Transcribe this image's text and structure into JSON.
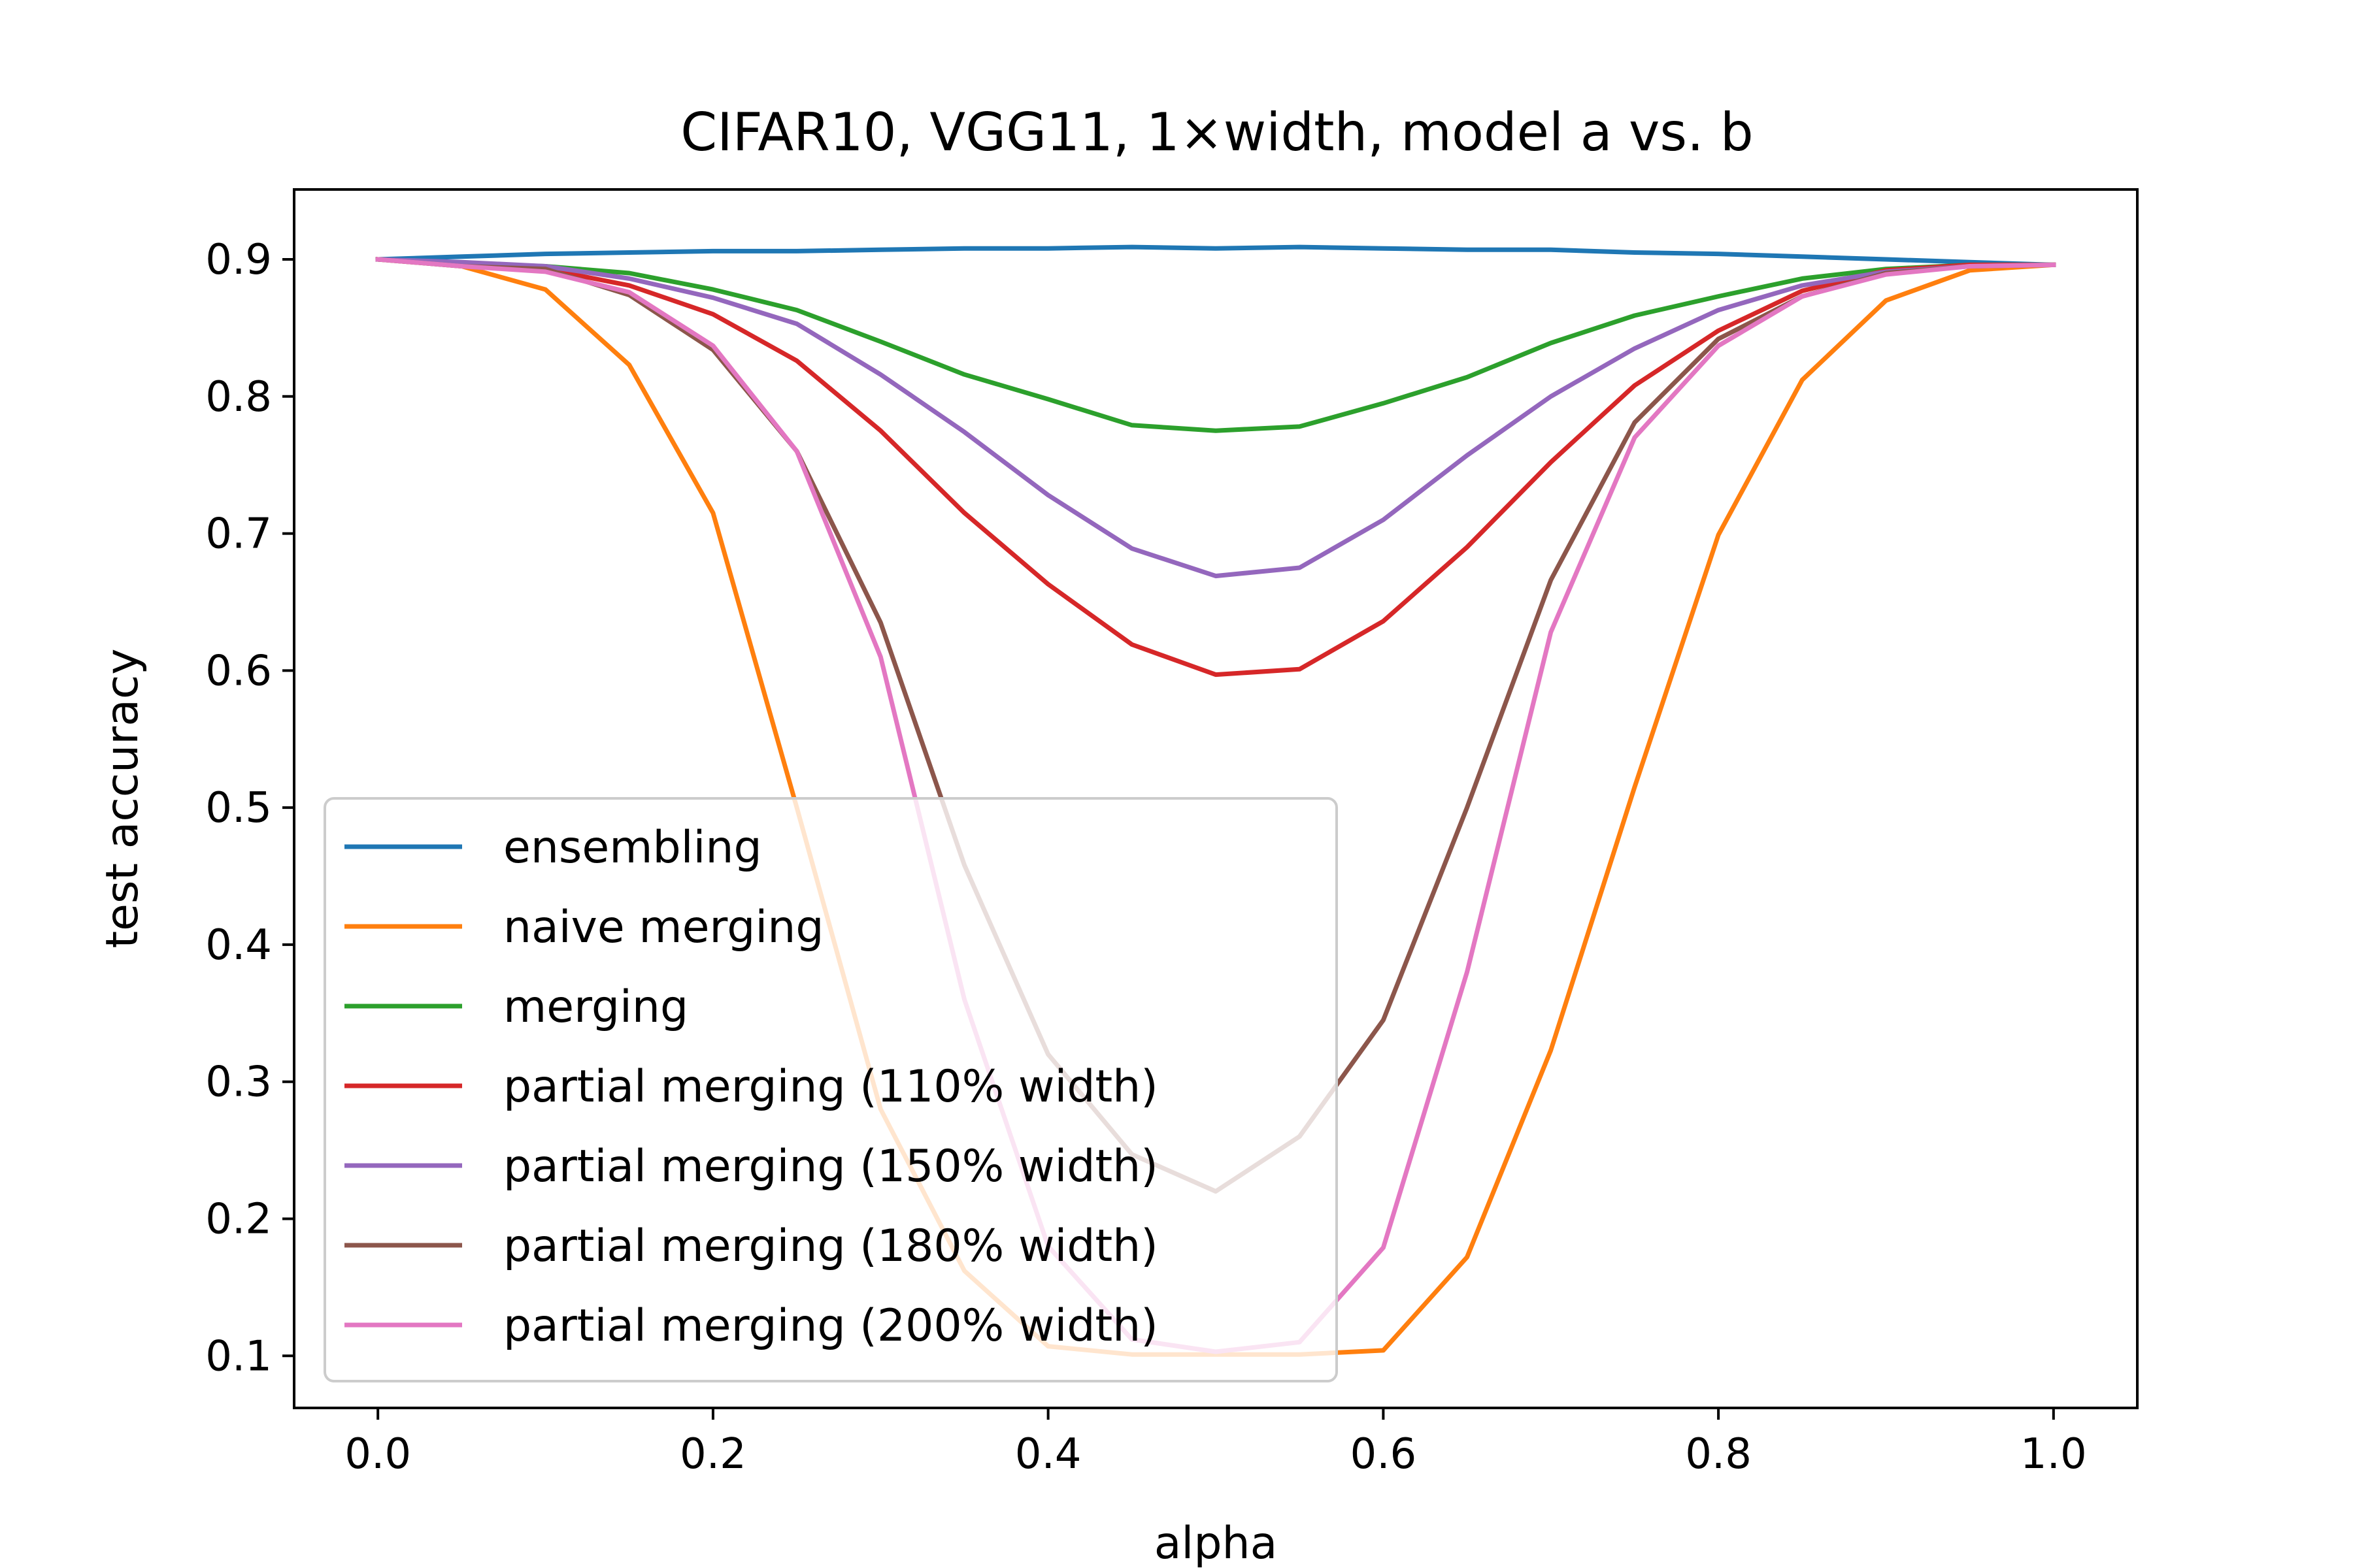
{
  "chart_data": {
    "type": "line",
    "title": "CIFAR10, VGG11, 1×width, model a vs. b",
    "xlabel": "alpha",
    "ylabel": "test accuracy",
    "xlim": [
      -0.05,
      1.05
    ],
    "ylim": [
      0.062,
      0.951
    ],
    "xticks": [
      0.0,
      0.2,
      0.4,
      0.6,
      0.8,
      1.0
    ],
    "xtick_labels": [
      "0.0",
      "0.2",
      "0.4",
      "0.6",
      "0.8",
      "1.0"
    ],
    "yticks": [
      0.1,
      0.2,
      0.3,
      0.4,
      0.5,
      0.6,
      0.7,
      0.8,
      0.9
    ],
    "ytick_labels": [
      "0.1",
      "0.2",
      "0.3",
      "0.4",
      "0.5",
      "0.6",
      "0.7",
      "0.8",
      "0.9"
    ],
    "grid": false,
    "legend_position": "lower-left",
    "x": [
      0.0,
      0.05,
      0.1,
      0.15,
      0.2,
      0.25,
      0.3,
      0.35,
      0.4,
      0.45,
      0.5,
      0.55,
      0.6,
      0.65,
      0.7,
      0.75,
      0.8,
      0.85,
      0.9,
      0.95,
      1.0
    ],
    "series": [
      {
        "name": "ensembling",
        "color": "#1f77b4",
        "values": [
          0.9,
          0.902,
          0.904,
          0.905,
          0.906,
          0.906,
          0.907,
          0.908,
          0.908,
          0.909,
          0.908,
          0.909,
          0.908,
          0.907,
          0.907,
          0.905,
          0.904,
          0.902,
          0.9,
          0.898,
          0.896
        ]
      },
      {
        "name": "naive merging",
        "color": "#ff7f0e",
        "values": [
          0.9,
          0.895,
          0.878,
          0.823,
          0.715,
          0.5,
          0.28,
          0.162,
          0.107,
          0.101,
          0.101,
          0.101,
          0.104,
          0.172,
          0.323,
          0.515,
          0.699,
          0.812,
          0.87,
          0.892,
          0.896
        ]
      },
      {
        "name": "merging",
        "color": "#2ca02c",
        "values": [
          0.9,
          0.897,
          0.895,
          0.89,
          0.878,
          0.863,
          0.84,
          0.816,
          0.798,
          0.779,
          0.775,
          0.778,
          0.795,
          0.814,
          0.839,
          0.859,
          0.873,
          0.886,
          0.893,
          0.896,
          0.896
        ]
      },
      {
        "name": "partial merging (110% width)",
        "color": "#d62728",
        "values": [
          0.9,
          0.897,
          0.893,
          0.881,
          0.86,
          0.826,
          0.775,
          0.715,
          0.663,
          0.619,
          0.597,
          0.601,
          0.636,
          0.69,
          0.752,
          0.808,
          0.848,
          0.877,
          0.892,
          0.896,
          0.896
        ]
      },
      {
        "name": "partial merging (150% width)",
        "color": "#9467bd",
        "values": [
          0.9,
          0.898,
          0.895,
          0.886,
          0.872,
          0.853,
          0.816,
          0.774,
          0.728,
          0.689,
          0.669,
          0.675,
          0.71,
          0.757,
          0.8,
          0.835,
          0.863,
          0.881,
          0.891,
          0.895,
          0.896
        ]
      },
      {
        "name": "partial merging (180% width)",
        "color": "#8c564b",
        "values": [
          0.9,
          0.895,
          0.893,
          0.874,
          0.834,
          0.76,
          0.635,
          0.458,
          0.32,
          0.247,
          0.22,
          0.26,
          0.345,
          0.5,
          0.666,
          0.781,
          0.842,
          0.873,
          0.89,
          0.895,
          0.896
        ]
      },
      {
        "name": "partial merging (200% width)",
        "color": "#e377c2",
        "values": [
          0.9,
          0.895,
          0.891,
          0.876,
          0.837,
          0.76,
          0.61,
          0.36,
          0.18,
          0.112,
          0.103,
          0.11,
          0.179,
          0.38,
          0.628,
          0.77,
          0.837,
          0.873,
          0.889,
          0.895,
          0.896
        ]
      }
    ]
  }
}
